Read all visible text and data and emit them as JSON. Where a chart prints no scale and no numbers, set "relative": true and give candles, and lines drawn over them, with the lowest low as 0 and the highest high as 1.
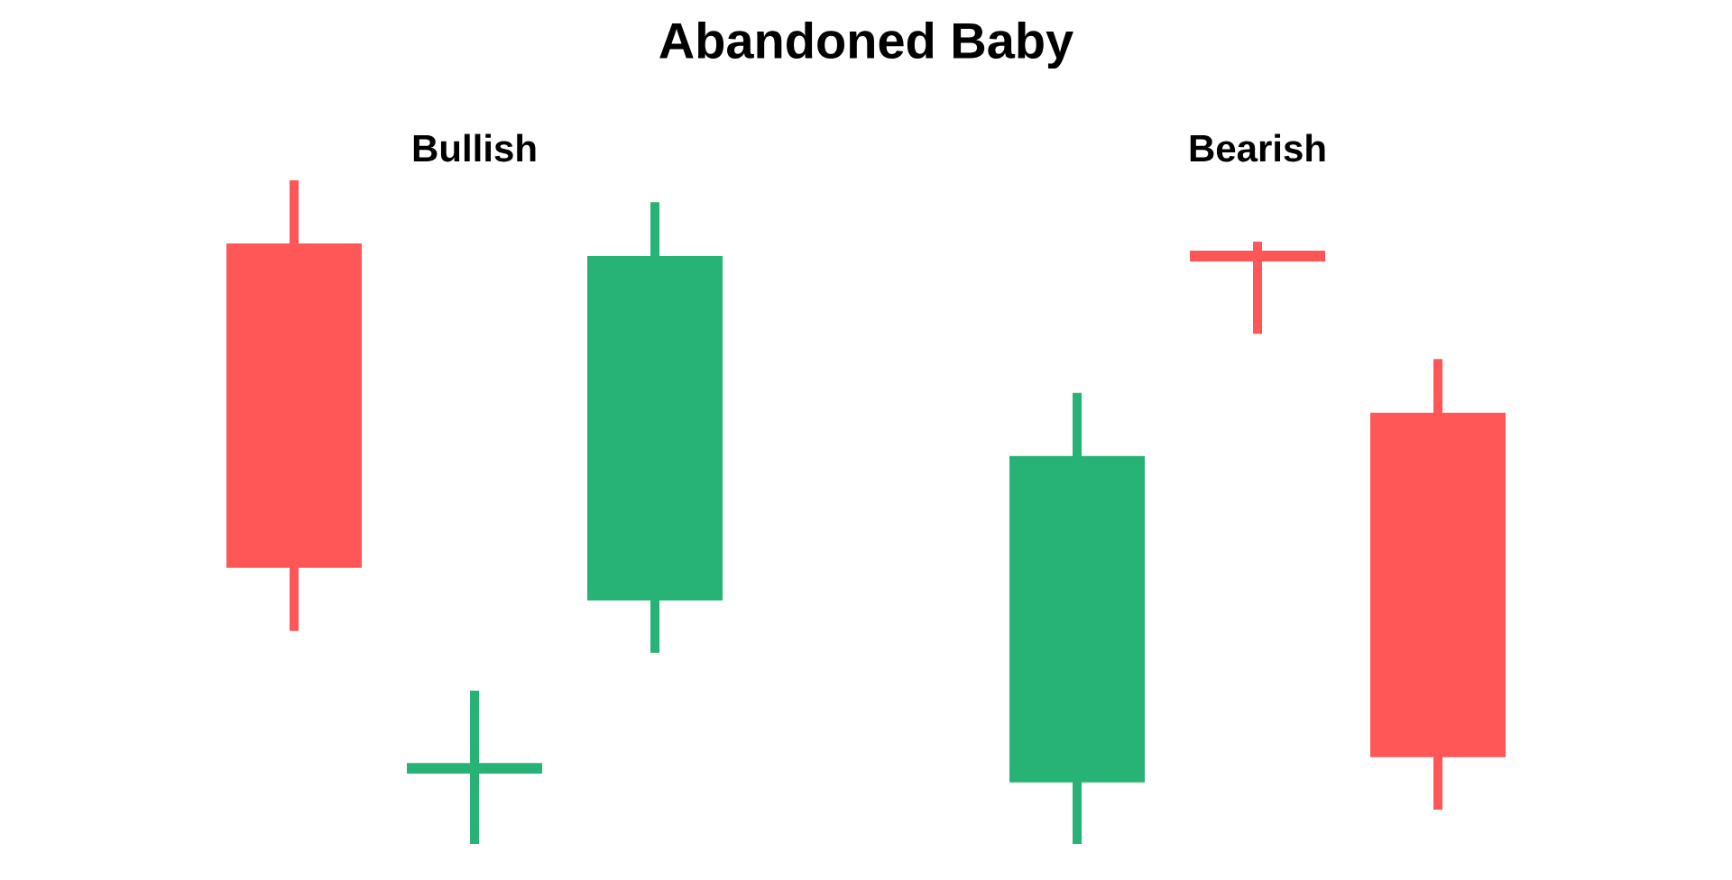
{
  "chart_data": [
    {
      "type": "candlestick",
      "title": "Abandoned Baby",
      "subtitle": "Bullish",
      "categories": [
        null,
        null,
        null
      ],
      "relative": true,
      "ohlc": [
        [
          0.905,
          1,
          0.321,
          0.416
        ],
        [
          0.106,
          0.231,
          0,
          0.122
        ],
        [
          0.367,
          0.967,
          0.288,
          0.886
        ]
      ],
      "colors": [
        "#ff5757",
        "#27b376",
        "#27b376"
      ]
    },
    {
      "type": "candlestick",
      "subtitle": "Bearish",
      "categories": [
        null,
        null,
        null
      ],
      "relative": true,
      "ohlc": [
        [
          0.102,
          0.749,
          0,
          0.644
        ],
        [
          0.985,
          1,
          0.847,
          0.967
        ],
        [
          0.716,
          0.805,
          0.057,
          0.144
        ]
      ],
      "colors": [
        "#27b376",
        "#ff5757",
        "#ff5757"
      ]
    }
  ]
}
